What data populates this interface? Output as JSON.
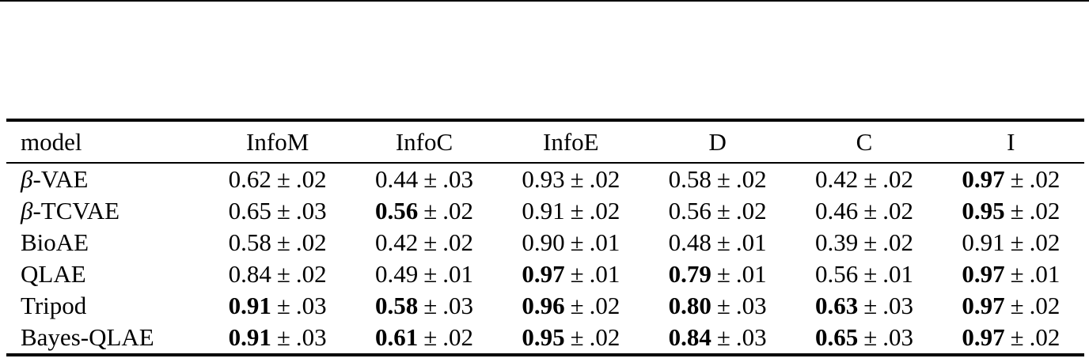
{
  "colors": {
    "background": "#ffffff",
    "text": "#000000",
    "rule": "#000000"
  },
  "table": {
    "plus_minus": "±",
    "columns": [
      "model",
      "InfoM",
      "InfoC",
      "InfoE",
      "D",
      "C",
      "I"
    ],
    "rows": [
      {
        "model": {
          "math": "β",
          "text": "-VAE"
        },
        "cells": [
          {
            "value": "0.62",
            "error": ".02",
            "bold": false
          },
          {
            "value": "0.44",
            "error": ".03",
            "bold": false
          },
          {
            "value": "0.93",
            "error": ".02",
            "bold": false
          },
          {
            "value": "0.58",
            "error": ".02",
            "bold": false
          },
          {
            "value": "0.42",
            "error": ".02",
            "bold": false
          },
          {
            "value": "0.97",
            "error": ".02",
            "bold": true
          }
        ]
      },
      {
        "model": {
          "math": "β",
          "text": "-TCVAE"
        },
        "cells": [
          {
            "value": "0.65",
            "error": ".03",
            "bold": false
          },
          {
            "value": "0.56",
            "error": ".02",
            "bold": true
          },
          {
            "value": "0.91",
            "error": ".02",
            "bold": false
          },
          {
            "value": "0.56",
            "error": ".02",
            "bold": false
          },
          {
            "value": "0.46",
            "error": ".02",
            "bold": false
          },
          {
            "value": "0.95",
            "error": ".02",
            "bold": true
          }
        ]
      },
      {
        "model": {
          "math": "",
          "text": "BioAE"
        },
        "cells": [
          {
            "value": "0.58",
            "error": ".02",
            "bold": false
          },
          {
            "value": "0.42",
            "error": ".02",
            "bold": false
          },
          {
            "value": "0.90",
            "error": ".01",
            "bold": false
          },
          {
            "value": "0.48",
            "error": ".01",
            "bold": false
          },
          {
            "value": "0.39",
            "error": ".02",
            "bold": false
          },
          {
            "value": "0.91",
            "error": ".02",
            "bold": false
          }
        ]
      },
      {
        "model": {
          "math": "",
          "text": "QLAE"
        },
        "cells": [
          {
            "value": "0.84",
            "error": ".02",
            "bold": false
          },
          {
            "value": "0.49",
            "error": ".01",
            "bold": false
          },
          {
            "value": "0.97",
            "error": ".01",
            "bold": true
          },
          {
            "value": "0.79",
            "error": ".01",
            "bold": true
          },
          {
            "value": "0.56",
            "error": ".01",
            "bold": false
          },
          {
            "value": "0.97",
            "error": ".01",
            "bold": true
          }
        ]
      },
      {
        "model": {
          "math": "",
          "text": "Tripod"
        },
        "cells": [
          {
            "value": "0.91",
            "error": ".03",
            "bold": true
          },
          {
            "value": "0.58",
            "error": ".03",
            "bold": true
          },
          {
            "value": "0.96",
            "error": ".02",
            "bold": true
          },
          {
            "value": "0.80",
            "error": ".03",
            "bold": true
          },
          {
            "value": "0.63",
            "error": ".03",
            "bold": true
          },
          {
            "value": "0.97",
            "error": ".02",
            "bold": true
          }
        ]
      },
      {
        "model": {
          "math": "",
          "text": "Bayes-QLAE"
        },
        "cells": [
          {
            "value": "0.91",
            "error": ".03",
            "bold": true
          },
          {
            "value": "0.61",
            "error": ".02",
            "bold": true
          },
          {
            "value": "0.95",
            "error": ".02",
            "bold": true
          },
          {
            "value": "0.84",
            "error": ".03",
            "bold": true
          },
          {
            "value": "0.65",
            "error": ".03",
            "bold": true
          },
          {
            "value": "0.97",
            "error": ".02",
            "bold": true
          }
        ]
      }
    ]
  }
}
